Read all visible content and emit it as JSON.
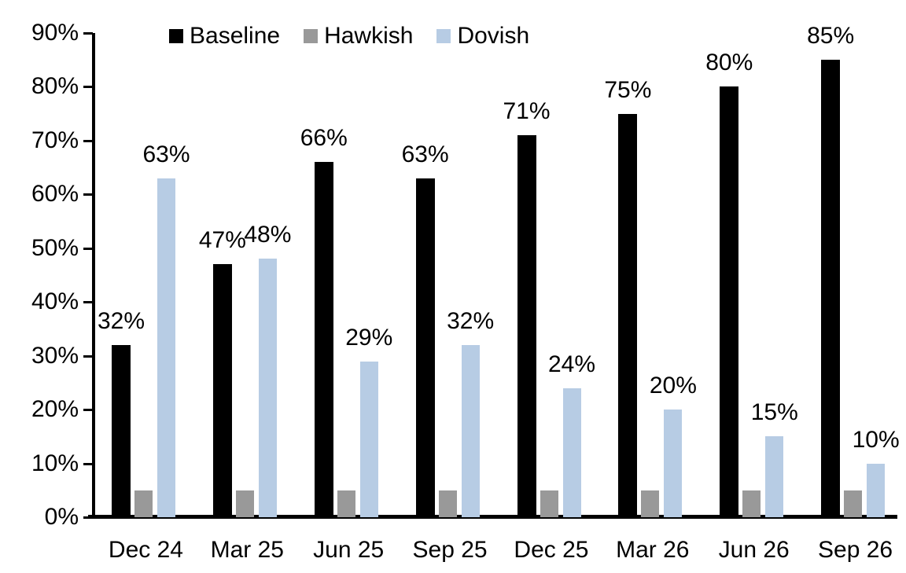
{
  "chart_data": {
    "type": "bar",
    "title": "",
    "xlabel": "",
    "ylabel": "",
    "categories": [
      "Dec 24",
      "Mar 25",
      "Jun 25",
      "Sep 25",
      "Dec 25",
      "Mar 26",
      "Jun 26",
      "Sep 26"
    ],
    "series": [
      {
        "name": "Baseline",
        "color": "#000000",
        "values": [
          32,
          47,
          66,
          63,
          71,
          75,
          80,
          85
        ],
        "labels": [
          "32%",
          "47%",
          "66%",
          "63%",
          "71%",
          "75%",
          "80%",
          "85%"
        ]
      },
      {
        "name": "Hawkish",
        "color": "#999999",
        "values": [
          5,
          5,
          5,
          5,
          5,
          5,
          5,
          5
        ],
        "labels": [
          null,
          null,
          null,
          null,
          null,
          null,
          null,
          null
        ]
      },
      {
        "name": "Dovish",
        "color": "#b7cce4",
        "values": [
          63,
          48,
          29,
          32,
          24,
          20,
          15,
          10
        ],
        "labels": [
          "63%",
          "48%",
          "29%",
          "32%",
          "24%",
          "20%",
          "15%",
          "10%"
        ]
      }
    ],
    "ylim": [
      0,
      90
    ],
    "ytick_step": 10,
    "yticks": [
      "0%",
      "10%",
      "20%",
      "30%",
      "40%",
      "50%",
      "60%",
      "70%",
      "80%",
      "90%"
    ],
    "grid": false,
    "legend_position": "top",
    "axis_color": "#000000",
    "background_color": "#ffffff"
  }
}
